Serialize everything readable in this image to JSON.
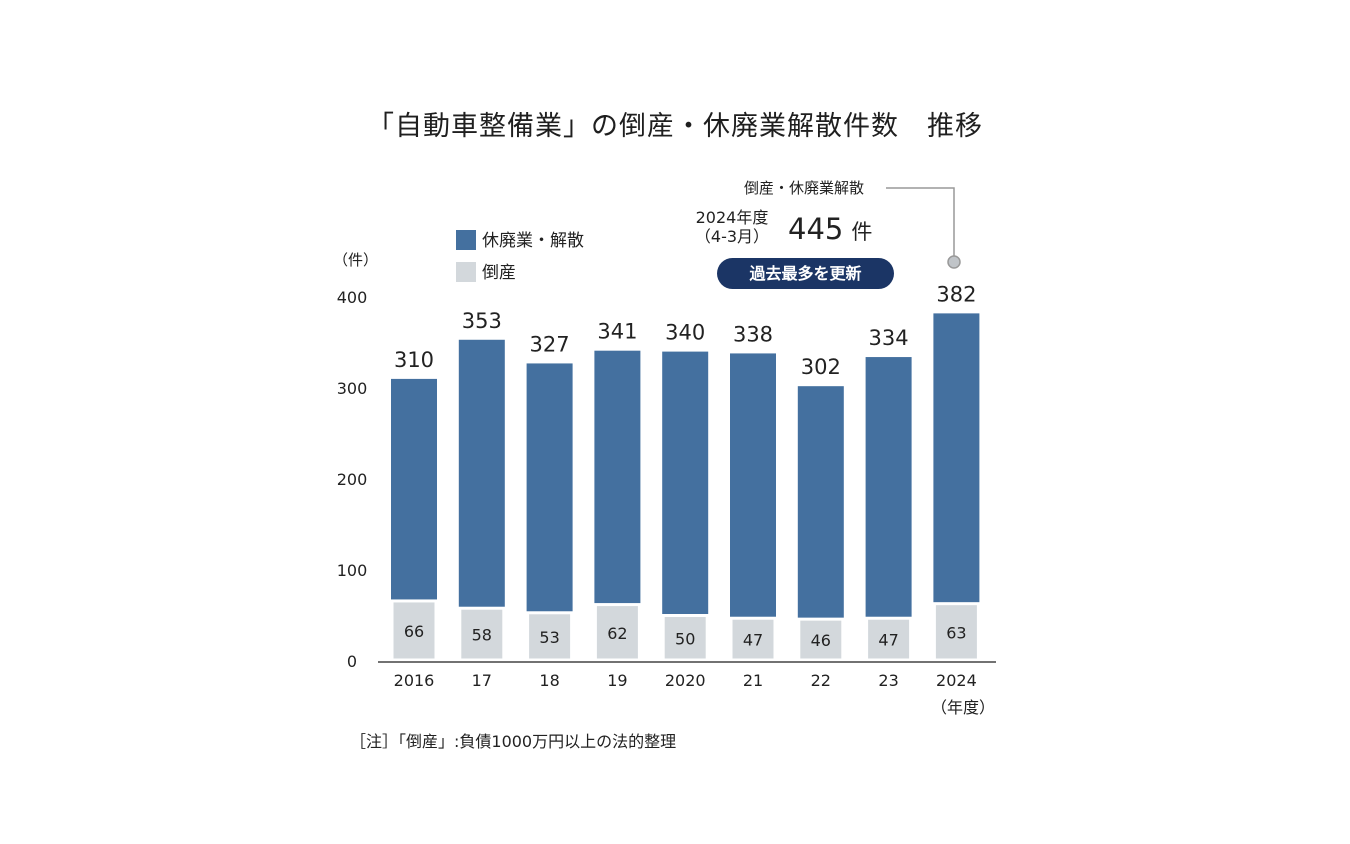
{
  "title": "「自動車整備業」の倒産・休廃業解散件数　推移",
  "note": "［注］「倒産」:負債1000万円以上の法的整理",
  "callout": {
    "label": "倒産・休廃業解散",
    "year_line1": "2024年度",
    "year_line2": "（4-3月）",
    "value": "445",
    "unit": "件",
    "badge": "過去最多を更新"
  },
  "colors": {
    "closure": "#44709f",
    "bankruptcy": "#d3d8dc"
  },
  "chart_data": {
    "type": "bar",
    "title": "「自動車整備業」の倒産・休廃業解散件数　推移",
    "ylabel": "（件）",
    "xlabel": "（年度）",
    "ylim": [
      0,
      400
    ],
    "yticks": [
      0,
      100,
      200,
      300,
      400
    ],
    "categories": [
      "2016",
      "17",
      "18",
      "19",
      "2020",
      "21",
      "22",
      "23",
      "2024"
    ],
    "legend_position": "top-left",
    "grid": false,
    "series": [
      {
        "name": "休廃業・解散",
        "values": [
          310,
          353,
          327,
          341,
          340,
          338,
          302,
          334,
          382
        ]
      },
      {
        "name": "倒産",
        "values": [
          66,
          58,
          53,
          62,
          50,
          47,
          46,
          47,
          63
        ]
      }
    ]
  }
}
